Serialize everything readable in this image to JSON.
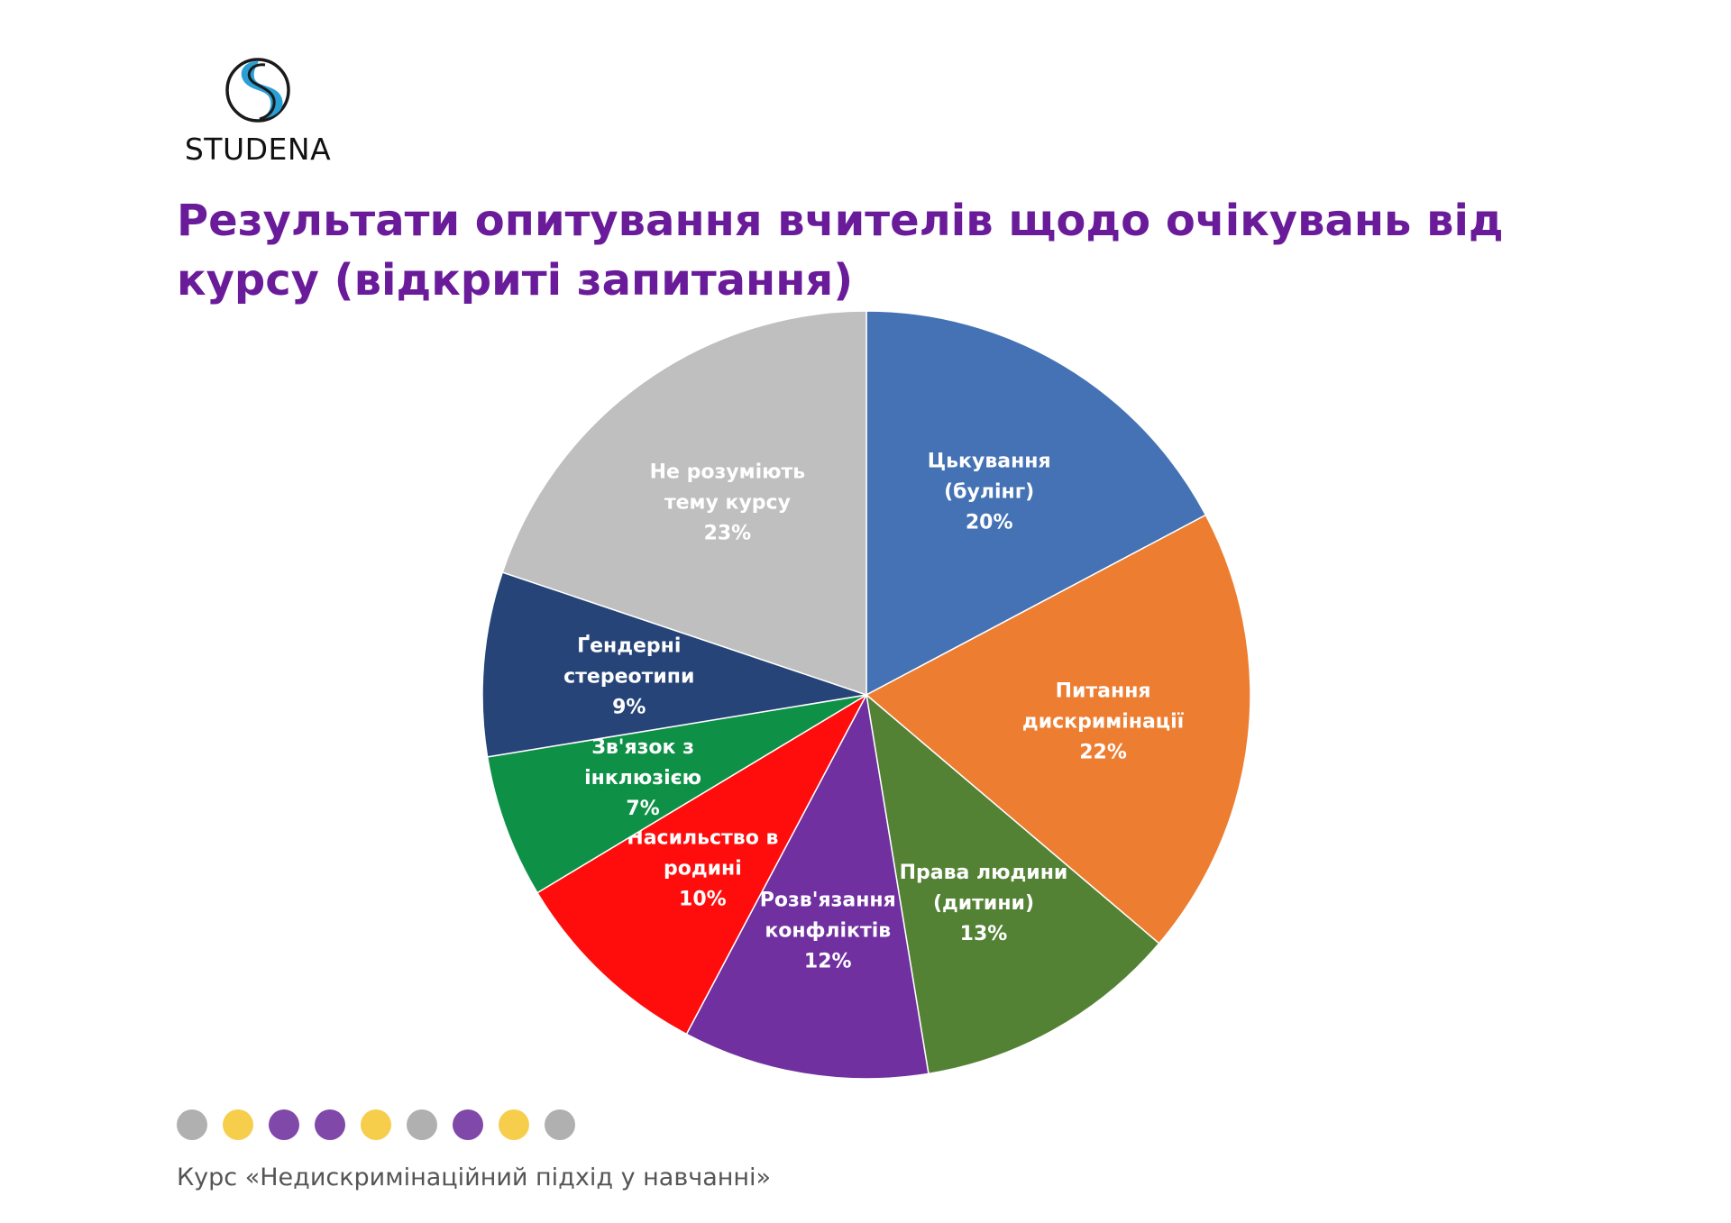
{
  "brand": {
    "name": "STUDENA",
    "logo_icon": "studena-s-logo-icon",
    "logo_colors": {
      "ring": "#1a1a1a",
      "accent": "#2a9fd6"
    }
  },
  "title": "Результати опитування вчителів щодо очікувань від курсу (відкриті запитання)",
  "chart_data": {
    "type": "pie",
    "title": "Результати опитування вчителів щодо очікувань від курсу (відкриті запитання)",
    "start_angle_deg": 0,
    "direction": "clockwise",
    "slices": [
      {
        "label_lines": [
          "Цькування",
          "(булінг)"
        ],
        "value": 20,
        "value_label": "20%",
        "color": "#4472b4"
      },
      {
        "label_lines": [
          "Питання",
          "дискримінації"
        ],
        "value": 22,
        "value_label": "22%",
        "color": "#ed7d31"
      },
      {
        "label_lines": [
          "Права людини",
          "(дитини)"
        ],
        "value": 13,
        "value_label": "13%",
        "color": "#548235"
      },
      {
        "label_lines": [
          "Розв'язання",
          "конфліктів"
        ],
        "value": 12,
        "value_label": "12%",
        "color": "#7030a0"
      },
      {
        "label_lines": [
          "Насильство в",
          "родині"
        ],
        "value": 10,
        "value_label": "10%",
        "color": "#ff0d0d"
      },
      {
        "label_lines": [
          "Зв'язок з",
          "інклюзією"
        ],
        "value": 7,
        "value_label": "7%",
        "color": "#0e9147"
      },
      {
        "label_lines": [
          "Ґендерні",
          "стереотипи"
        ],
        "value": 9,
        "value_label": "9%",
        "color": "#264478"
      },
      {
        "label_lines": [
          "Не розуміють",
          "тему курсу"
        ],
        "value": 23,
        "value_label": "23%",
        "color": "#bfbfbf"
      }
    ]
  },
  "decor_dots": [
    "#b0b0b0",
    "#f7cd4c",
    "#8048a8",
    "#8048a8",
    "#f7cd4c",
    "#b0b0b0",
    "#8048a8",
    "#f7cd4c",
    "#b0b0b0"
  ],
  "footer": "Курс «Недискримінаційний підхід у навчанні»"
}
